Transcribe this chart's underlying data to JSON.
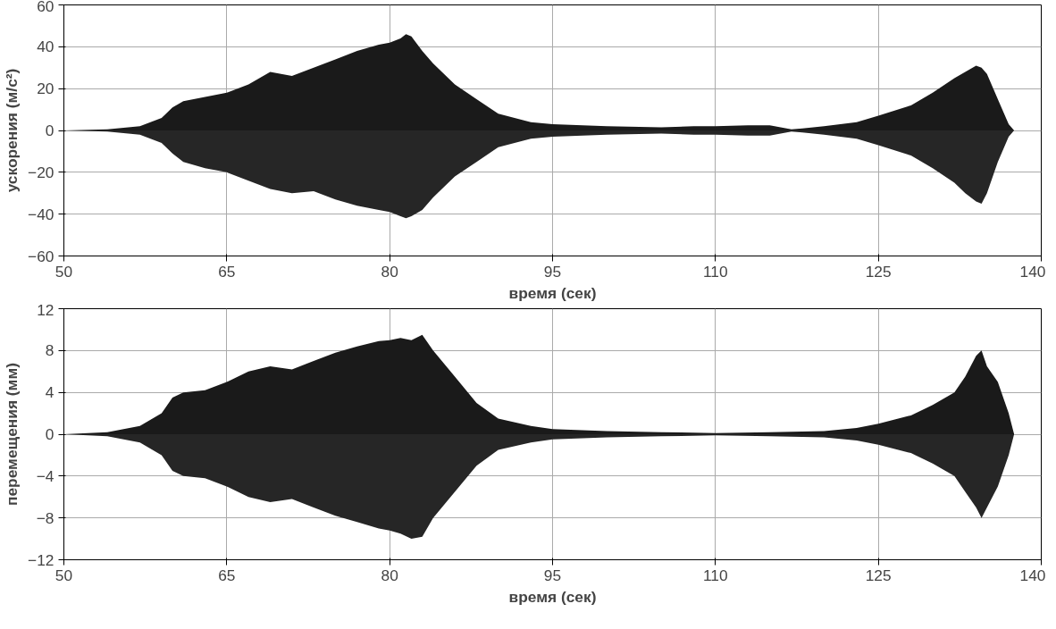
{
  "chart_data": [
    {
      "type": "area",
      "xlabel": "время (сек)",
      "ylabel": "ускорения (м/с²)",
      "xlim": [
        50,
        140
      ],
      "ylim": [
        -60,
        60
      ],
      "xticks": [
        50,
        65,
        80,
        95,
        110,
        125,
        140
      ],
      "yticks": [
        -60,
        -40,
        -20,
        0,
        20,
        40,
        60
      ],
      "grid": true,
      "x": [
        50,
        54,
        57,
        59,
        60,
        61,
        63,
        65,
        67,
        69,
        71,
        73,
        75,
        77,
        79,
        80,
        81,
        81.5,
        82,
        83,
        84,
        86,
        88,
        90,
        93,
        95,
        100,
        105,
        108,
        110,
        113,
        115,
        117,
        118,
        120,
        123,
        125,
        128,
        130,
        132,
        133,
        134,
        134.5,
        135,
        136,
        137,
        137.5,
        140
      ],
      "series": [
        {
          "color": "#1a1a1a",
          "values": [
            0,
            0.5,
            2,
            6,
            11,
            14,
            16,
            18,
            22,
            28,
            26,
            30,
            34,
            38,
            41,
            42,
            44,
            46,
            45,
            38,
            32,
            22,
            15,
            8,
            4,
            3,
            2,
            1.5,
            2,
            2,
            2.5,
            2.5,
            0.5,
            1,
            2,
            4,
            7,
            12,
            18,
            25,
            28,
            31,
            30,
            27,
            15,
            3,
            0,
            0
          ]
        },
        {
          "color": "#262626",
          "values": [
            0,
            -0.5,
            -2,
            -6,
            -11,
            -15,
            -18,
            -20,
            -24,
            -28,
            -30,
            -29,
            -33,
            -36,
            -38,
            -39,
            -41,
            -42,
            -41,
            -38,
            -32,
            -22,
            -15,
            -8,
            -4,
            -3,
            -2,
            -1.5,
            -2,
            -2,
            -2.5,
            -2.5,
            -0.5,
            -1,
            -2,
            -4,
            -7,
            -12,
            -18,
            -25,
            -30,
            -34,
            -35,
            -30,
            -15,
            -3,
            0,
            0
          ]
        }
      ]
    },
    {
      "type": "area",
      "xlabel": "время (сек)",
      "ylabel": "перемещения (мм)",
      "xlim": [
        50,
        140
      ],
      "ylim": [
        -12,
        12
      ],
      "xticks": [
        50,
        65,
        80,
        95,
        110,
        125,
        140
      ],
      "yticks": [
        -12,
        -8,
        -4,
        0,
        4,
        8,
        12
      ],
      "grid": true,
      "x": [
        50,
        54,
        57,
        59,
        60,
        61,
        63,
        65,
        67,
        69,
        71,
        73,
        75,
        77,
        79,
        80,
        81,
        82,
        83,
        84,
        86,
        88,
        90,
        93,
        95,
        100,
        105,
        110,
        115,
        120,
        123,
        125,
        128,
        130,
        132,
        133,
        134,
        134.5,
        135,
        136,
        137,
        137.5,
        140
      ],
      "series": [
        {
          "color": "#1a1a1a",
          "values": [
            0,
            0.2,
            0.8,
            2,
            3.5,
            4,
            4.2,
            5,
            6,
            6.5,
            6.2,
            7,
            7.8,
            8.4,
            8.9,
            9,
            9.2,
            9,
            9.5,
            8,
            5.5,
            3,
            1.5,
            0.8,
            0.5,
            0.3,
            0.2,
            0.1,
            0.2,
            0.3,
            0.6,
            1,
            1.8,
            2.8,
            4,
            5.5,
            7.5,
            8,
            6.5,
            5,
            2,
            0,
            0
          ]
        },
        {
          "color": "#262626",
          "values": [
            0,
            -0.2,
            -0.8,
            -2,
            -3.5,
            -4,
            -4.2,
            -5,
            -6,
            -6.5,
            -6.2,
            -7,
            -7.8,
            -8.4,
            -9,
            -9.2,
            -9.5,
            -10,
            -9.8,
            -8,
            -5.5,
            -3,
            -1.5,
            -0.8,
            -0.5,
            -0.3,
            -0.2,
            -0.1,
            -0.2,
            -0.3,
            -0.6,
            -1,
            -1.8,
            -2.8,
            -4,
            -5.5,
            -7,
            -8,
            -7,
            -5,
            -2,
            0,
            0
          ]
        }
      ]
    }
  ]
}
